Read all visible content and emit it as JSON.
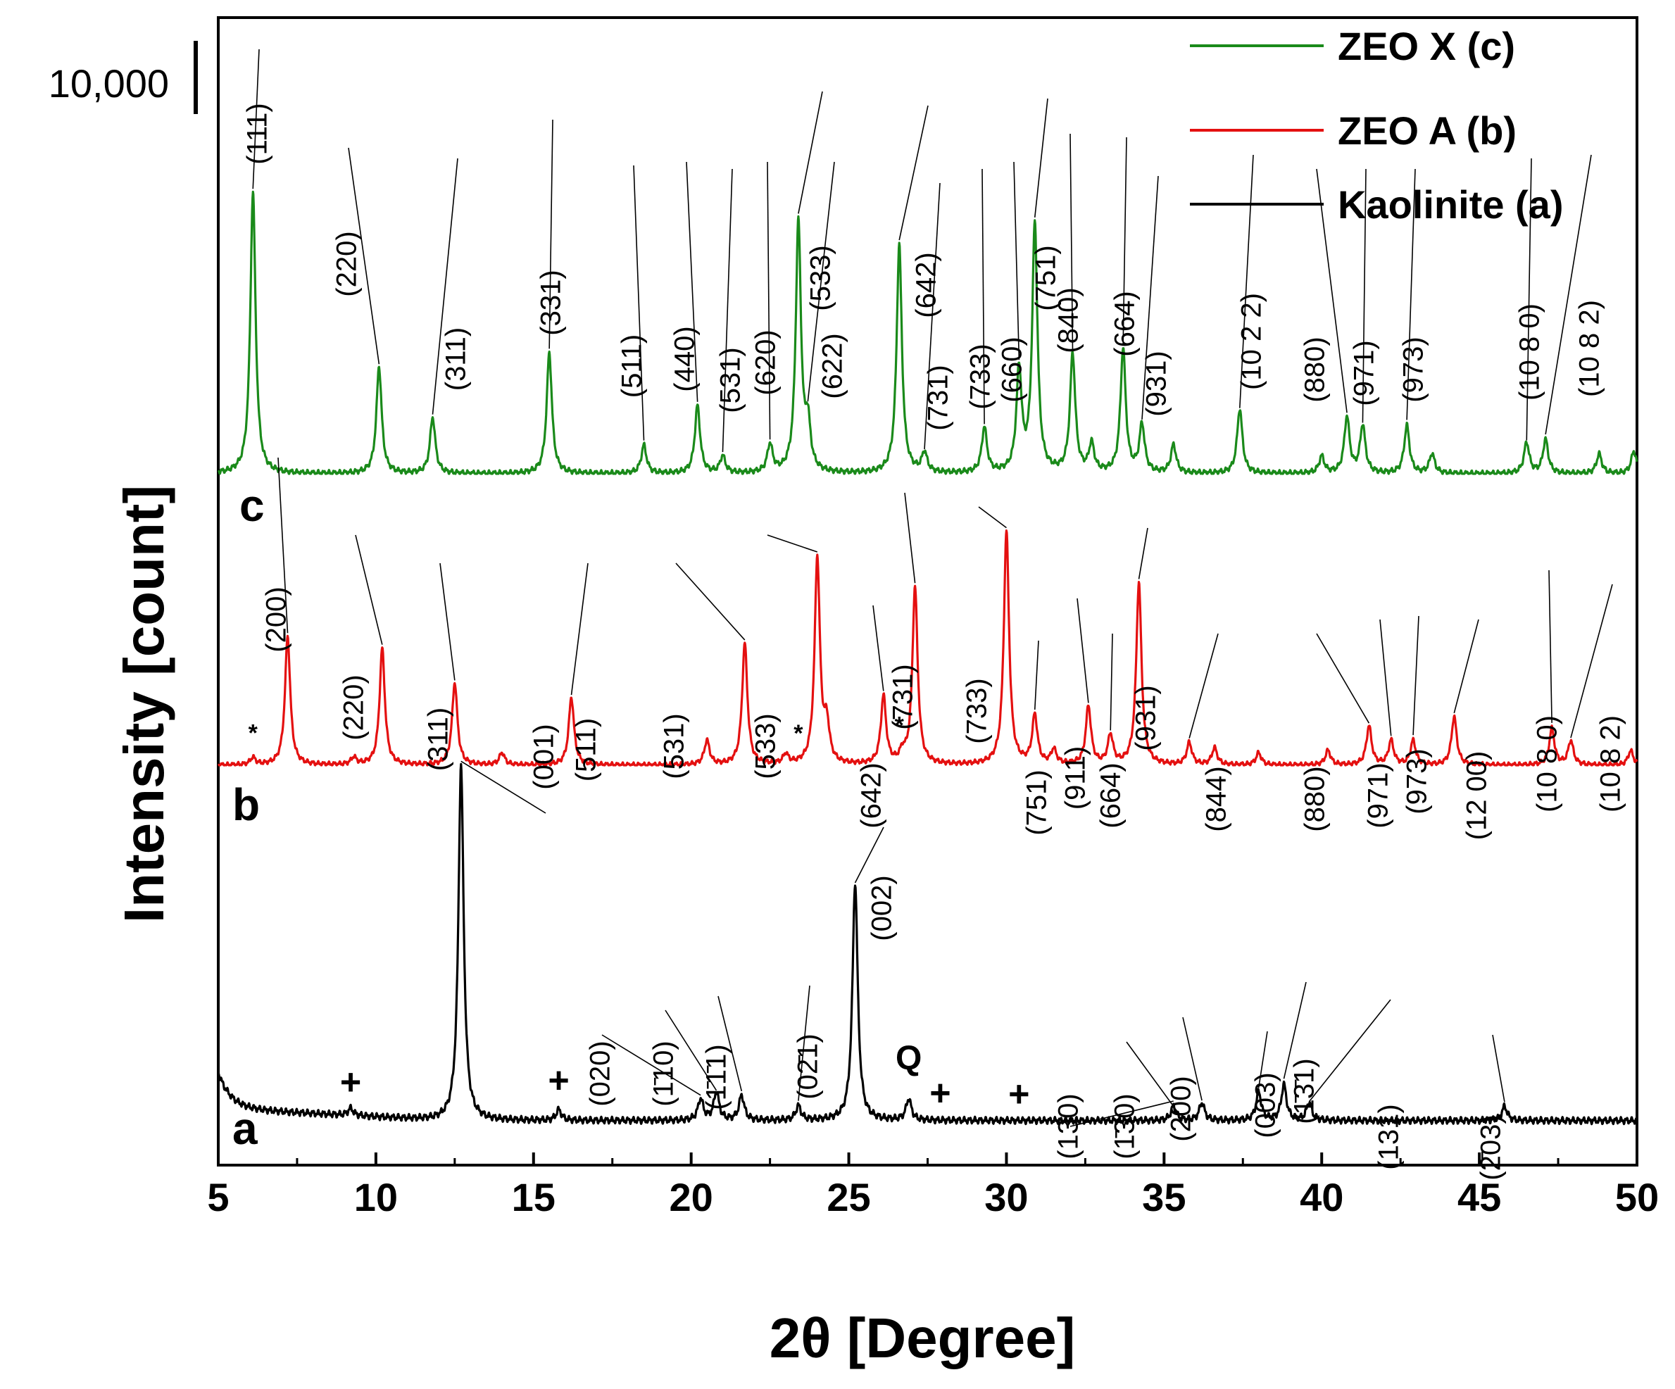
{
  "chart_data": {
    "type": "line",
    "title": "",
    "xlabel": "2θ [Degree]",
    "ylabel": "Intensity [count]",
    "xlim": [
      5,
      50
    ],
    "x_ticks": [
      "5",
      "10",
      "15",
      "20",
      "25",
      "30",
      "35",
      "40",
      "45",
      "50"
    ],
    "scale_bar_label": "10,000",
    "legend": {
      "placement": "top-right",
      "entries": [
        {
          "label": "ZEO X (c)",
          "color": "#1a8a1a"
        },
        {
          "label": "ZEO A (b)",
          "color": "#e41010"
        },
        {
          "label": "Kaolinite (a)",
          "color": "#000000"
        }
      ]
    },
    "series": [
      {
        "id": "c",
        "name": "ZEO X (c)",
        "letter": "c",
        "color": "#1a8a1a",
        "baseline": 0.0,
        "peaks": [
          [
            6.1,
            1.0
          ],
          [
            10.1,
            0.38
          ],
          [
            11.8,
            0.2
          ],
          [
            15.5,
            0.43
          ],
          [
            18.5,
            0.1
          ],
          [
            20.2,
            0.24
          ],
          [
            21.0,
            0.06
          ],
          [
            22.5,
            0.1
          ],
          [
            23.4,
            0.89
          ],
          [
            23.7,
            0.16
          ],
          [
            26.6,
            0.81
          ],
          [
            27.4,
            0.07
          ],
          [
            29.3,
            0.16
          ],
          [
            30.4,
            0.36
          ],
          [
            30.9,
            0.88
          ],
          [
            32.1,
            0.42
          ],
          [
            32.7,
            0.1
          ],
          [
            33.7,
            0.44
          ],
          [
            34.3,
            0.17
          ],
          [
            35.3,
            0.1
          ],
          [
            37.4,
            0.23
          ],
          [
            40.0,
            0.06
          ],
          [
            40.8,
            0.2
          ],
          [
            41.3,
            0.17
          ],
          [
            42.7,
            0.17
          ],
          [
            43.5,
            0.07
          ],
          [
            46.5,
            0.11
          ],
          [
            47.1,
            0.12
          ],
          [
            48.8,
            0.07
          ],
          [
            49.9,
            0.08
          ]
        ],
        "peak_labels": [
          {
            "text": "(111)",
            "x": 6.1
          },
          {
            "text": "(220)",
            "x": 10.1
          },
          {
            "text": "(311)",
            "x": 11.8
          },
          {
            "text": "(331)",
            "x": 15.5
          },
          {
            "text": "(511)",
            "x": 18.5
          },
          {
            "text": "(440)",
            "x": 20.2
          },
          {
            "text": "(531)",
            "x": 21.0
          },
          {
            "text": "(620)",
            "x": 22.5
          },
          {
            "text": "(533)",
            "x": 23.4
          },
          {
            "text": "(622)",
            "x": 23.7
          },
          {
            "text": "(642)",
            "x": 26.6
          },
          {
            "text": "(731)",
            "x": 27.4
          },
          {
            "text": "(733)",
            "x": 29.3
          },
          {
            "text": "(660)",
            "x": 30.4
          },
          {
            "text": "(751)",
            "x": 30.9
          },
          {
            "text": "(840)",
            "x": 32.1
          },
          {
            "text": "(664)",
            "x": 33.7
          },
          {
            "text": "(931)",
            "x": 34.3
          },
          {
            "text": "(10 2 2)",
            "x": 37.4
          },
          {
            "text": "(880)",
            "x": 40.8
          },
          {
            "text": "(971)",
            "x": 41.3
          },
          {
            "text": "(973)",
            "x": 42.7
          },
          {
            "text": "(10 8 0)",
            "x": 46.5
          },
          {
            "text": "(10 8 2)",
            "x": 47.1
          }
        ],
        "markers": []
      },
      {
        "id": "b",
        "name": "ZEO A (b)",
        "letter": "b",
        "color": "#e41010",
        "baseline": 0.0,
        "peaks": [
          [
            6.1,
            0.03
          ],
          [
            7.2,
            0.53
          ],
          [
            9.3,
            0.03
          ],
          [
            10.2,
            0.48
          ],
          [
            12.5,
            0.34
          ],
          [
            14.0,
            0.05
          ],
          [
            16.2,
            0.28
          ],
          [
            20.5,
            0.1
          ],
          [
            21.7,
            0.5
          ],
          [
            23.0,
            0.04
          ],
          [
            24.0,
            0.85
          ],
          [
            24.3,
            0.15
          ],
          [
            26.1,
            0.28
          ],
          [
            26.7,
            0.04
          ],
          [
            27.1,
            0.73
          ],
          [
            30.0,
            0.96
          ],
          [
            30.9,
            0.2
          ],
          [
            31.5,
            0.06
          ],
          [
            32.6,
            0.24
          ],
          [
            33.3,
            0.12
          ],
          [
            34.2,
            0.75
          ],
          [
            35.8,
            0.09
          ],
          [
            36.6,
            0.07
          ],
          [
            38.0,
            0.05
          ],
          [
            40.2,
            0.06
          ],
          [
            41.5,
            0.16
          ],
          [
            42.2,
            0.1
          ],
          [
            42.9,
            0.1
          ],
          [
            44.2,
            0.2
          ],
          [
            47.3,
            0.15
          ],
          [
            47.9,
            0.1
          ],
          [
            49.8,
            0.06
          ]
        ],
        "peak_labels": [
          {
            "text": "(200)",
            "x": 7.2
          },
          {
            "text": "(220)",
            "x": 10.2
          },
          {
            "text": "(311)",
            "x": 12.5
          },
          {
            "text": "(511)",
            "x": 16.2
          },
          {
            "text": "(531)",
            "x": 21.7
          },
          {
            "text": "(533)",
            "x": 24.0
          },
          {
            "text": "(642)",
            "x": 26.1
          },
          {
            "text": "(731)",
            "x": 27.1
          },
          {
            "text": "(733)",
            "x": 30.0
          },
          {
            "text": "(751)",
            "x": 30.9
          },
          {
            "text": "(911)",
            "x": 32.6
          },
          {
            "text": "(664)",
            "x": 33.3
          },
          {
            "text": "(931)",
            "x": 34.2
          },
          {
            "text": "(844)",
            "x": 35.8
          },
          {
            "text": "(880)",
            "x": 41.5
          },
          {
            "text": "(971)",
            "x": 42.2
          },
          {
            "text": "(973)",
            "x": 42.9
          },
          {
            "text": "(12 00)",
            "x": 44.2
          },
          {
            "text": "(10 8 0)",
            "x": 47.3
          },
          {
            "text": "(10 8 2)",
            "x": 47.9
          }
        ],
        "markers": [
          {
            "text": "*",
            "x": 6.1
          },
          {
            "text": "*",
            "x": 23.4
          },
          {
            "text": "*",
            "x": 26.6
          }
        ]
      },
      {
        "id": "a",
        "name": "Kaolinite (a)",
        "letter": "a",
        "color": "#000000",
        "baseline": 0.05,
        "peaks": [
          [
            9.2,
            0.02
          ],
          [
            12.7,
            1.0
          ],
          [
            15.8,
            0.03
          ],
          [
            20.3,
            0.06
          ],
          [
            20.8,
            0.08
          ],
          [
            21.6,
            0.07
          ],
          [
            23.4,
            0.04
          ],
          [
            25.2,
            0.67
          ],
          [
            26.9,
            0.06
          ],
          [
            35.3,
            0.04
          ],
          [
            36.2,
            0.05
          ],
          [
            38.0,
            0.08
          ],
          [
            38.8,
            0.1
          ],
          [
            39.6,
            0.05
          ],
          [
            45.8,
            0.04
          ]
        ],
        "peak_labels": [
          {
            "text": "(001)",
            "x": 12.7
          },
          {
            "text": "(020)",
            "x": 20.3
          },
          {
            "text": "(1̄10)",
            "x": 20.8
          },
          {
            "text": "(1̄1̄1)",
            "x": 21.6
          },
          {
            "text": "(02̄1)",
            "x": 23.4
          },
          {
            "text": "(002)",
            "x": 25.2
          },
          {
            "text": "(130)",
            "x": 35.3
          },
          {
            "text": "(1̄30)",
            "x": 35.5
          },
          {
            "text": "(200)",
            "x": 36.2
          },
          {
            "text": "(003)",
            "x": 38.0
          },
          {
            "text": "(1̄3̄1)",
            "x": 38.8
          },
          {
            "text": "(131)",
            "x": 39.6
          },
          {
            "text": "(2̄03)",
            "x": 45.8
          }
        ],
        "markers": [
          {
            "text": "+",
            "x": 9.2
          },
          {
            "text": "+",
            "x": 15.8
          },
          {
            "text": "Q",
            "x": 26.9
          },
          {
            "text": "+",
            "x": 27.9
          },
          {
            "text": "+",
            "x": 30.4
          }
        ]
      }
    ]
  }
}
